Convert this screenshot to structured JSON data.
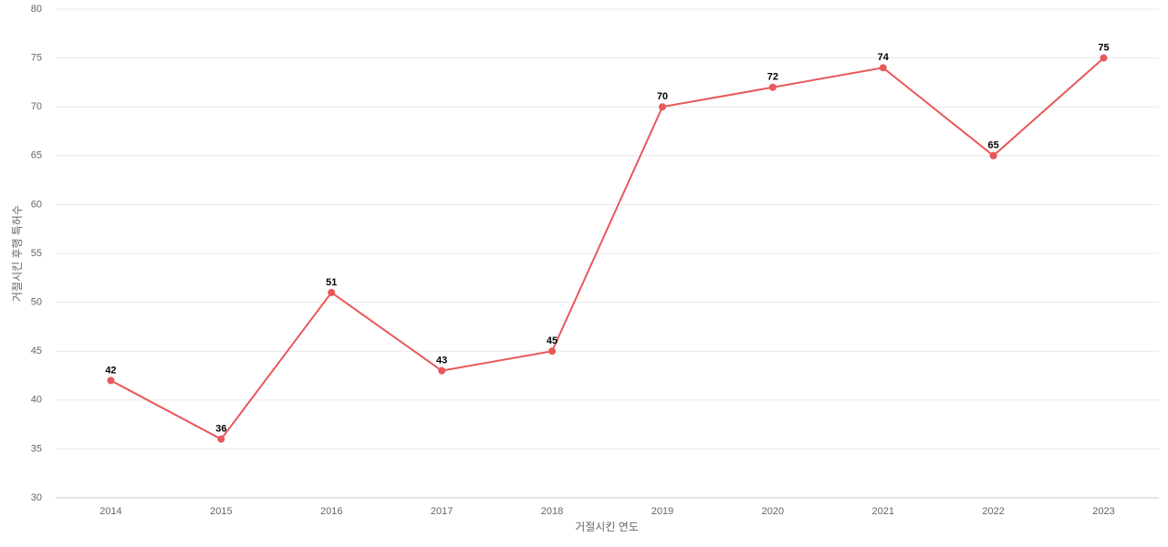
{
  "chart_data": {
    "type": "line",
    "x_label": "거절시킨 연도",
    "y_label": "거절시킨 후행 특허수",
    "categories": [
      "2014",
      "2015",
      "2016",
      "2017",
      "2018",
      "2019",
      "2020",
      "2021",
      "2022",
      "2023"
    ],
    "values": [
      42,
      36,
      51,
      43,
      45,
      70,
      72,
      74,
      65,
      75
    ],
    "color": "#e8585a",
    "ylim": [
      30,
      80
    ],
    "yticks": [
      30,
      35,
      40,
      45,
      50,
      55,
      60,
      65,
      70,
      75,
      80
    ],
    "grid": true
  }
}
